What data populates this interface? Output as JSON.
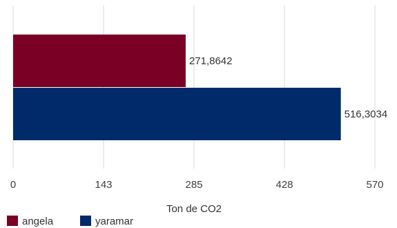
{
  "chart_data": {
    "type": "bar",
    "orientation": "horizontal",
    "series": [
      {
        "name": "angela",
        "value": 271.8642,
        "label": "271,8642",
        "color": "#7a0026"
      },
      {
        "name": "yaramar",
        "value": 516.3034,
        "label": "516,3034",
        "color": "#012a6b"
      }
    ],
    "xlabel": "Ton  de CO2",
    "xlim": [
      0,
      570
    ],
    "xticks": [
      {
        "value": 0,
        "label": "0"
      },
      {
        "value": 142.5,
        "label": "143"
      },
      {
        "value": 285,
        "label": "285"
      },
      {
        "value": 427.5,
        "label": "428"
      },
      {
        "value": 570,
        "label": "570"
      }
    ],
    "grid": "vertical",
    "legend_position": "bottom-left",
    "gridline_color": "#d9d9d9"
  }
}
